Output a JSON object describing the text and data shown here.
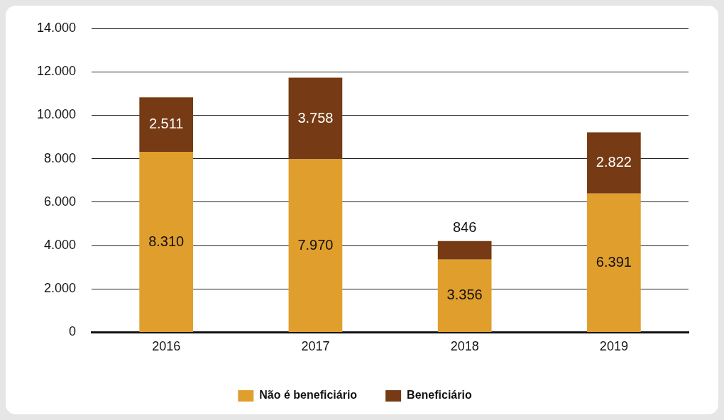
{
  "chart_data": {
    "type": "bar",
    "stacked": true,
    "categories": [
      "2016",
      "2017",
      "2018",
      "2019"
    ],
    "series": [
      {
        "name": "Não é beneficiário",
        "color": "#e09e2c",
        "values": [
          8310,
          7970,
          3356,
          6391
        ],
        "value_labels": [
          "8.310",
          "7.970",
          "3.356",
          "6.391"
        ]
      },
      {
        "name": "Beneficiário",
        "color": "#763a14",
        "values": [
          2511,
          3758,
          846,
          2822
        ],
        "value_labels": [
          "2.511",
          "3.758",
          "846",
          "2.822"
        ]
      }
    ],
    "ylim": [
      0,
      14000
    ],
    "yticks": [
      {
        "value": 0,
        "label": "0"
      },
      {
        "value": 2000,
        "label": "2.000"
      },
      {
        "value": 4000,
        "label": "4.000"
      },
      {
        "value": 6000,
        "label": "6.000"
      },
      {
        "value": 8000,
        "label": "8.000"
      },
      {
        "value": 10000,
        "label": "10.000"
      },
      {
        "value": 12000,
        "label": "12.000"
      },
      {
        "value": 14000,
        "label": "14.000"
      }
    ],
    "grid": "y",
    "legend": "bottom"
  }
}
